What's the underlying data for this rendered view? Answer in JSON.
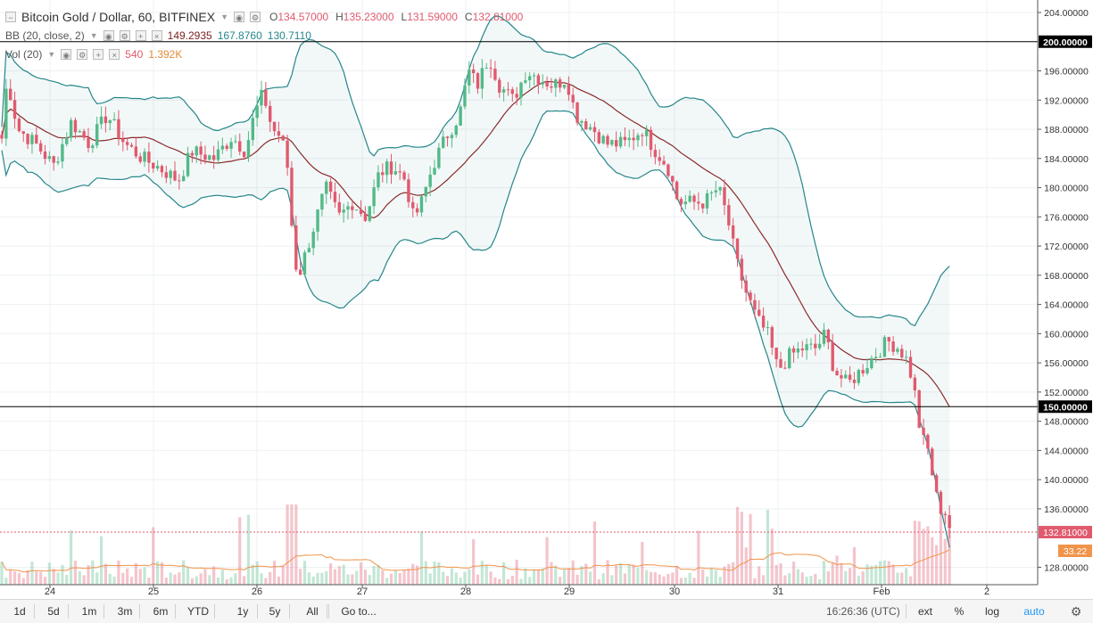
{
  "legend": {
    "symbol": "Bitcoin Gold / Dollar, 60, BITFINEX",
    "ohlc": [
      {
        "key": "O",
        "value": "134.57000"
      },
      {
        "key": "H",
        "value": "135.23000"
      },
      {
        "key": "L",
        "value": "131.59000"
      },
      {
        "key": "C",
        "value": "132.81000"
      }
    ],
    "bb": {
      "label": "BB (20, close, 2)",
      "values": [
        "149.2935",
        "167.8760",
        "130.7110"
      ]
    },
    "vol": {
      "label": "Vol (20)",
      "values": [
        "540",
        "1.392K"
      ]
    }
  },
  "price_axis": {
    "ticks": [
      "204.00000",
      "200.00000",
      "196.00000",
      "192.00000",
      "188.00000",
      "184.00000",
      "180.00000",
      "176.00000",
      "172.00000",
      "168.00000",
      "164.00000",
      "160.00000",
      "156.00000",
      "152.00000",
      "150.00000",
      "148.00000",
      "144.00000",
      "140.00000",
      "136.00000",
      "132.81000",
      "128.00000"
    ],
    "tick_values": [
      204,
      200,
      196,
      192,
      188,
      184,
      180,
      176,
      172,
      168,
      164,
      160,
      156,
      152,
      150,
      148,
      144,
      140,
      136,
      132.81,
      128
    ],
    "current_price": "132.81000",
    "current_volume": "33.22",
    "horizontal_lines": [
      {
        "label": "200.00000",
        "value": 200
      },
      {
        "label": "150.00000",
        "value": 150
      }
    ]
  },
  "time_axis": {
    "labels": [
      "24",
      "25",
      "26",
      "27",
      "28",
      "29",
      "30",
      "31",
      "Feb",
      "2"
    ]
  },
  "colors": {
    "up": "#53b987",
    "down": "#e05a6e",
    "bb_band": "#26868a",
    "bb_basis": "#8b2a2a",
    "vol_ma": "#f0944b",
    "line": "#000000"
  },
  "toolbar": {
    "ranges": [
      "1d",
      "5d",
      "1m",
      "3m",
      "6m",
      "YTD",
      "1y",
      "5y",
      "All"
    ],
    "goto": "Go to...",
    "clock": "16:26:36 (UTC)",
    "ext": "ext",
    "percent": "%",
    "log": "log",
    "auto": "auto"
  }
}
